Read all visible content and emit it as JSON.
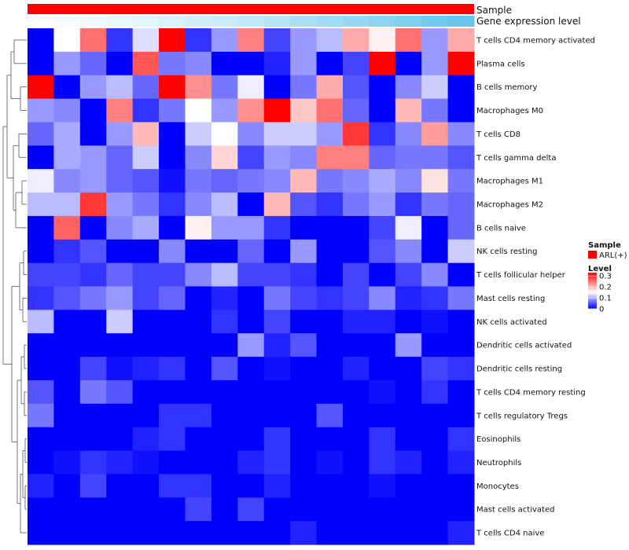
{
  "chart_data": {
    "type": "heatmap",
    "title": "",
    "column_annotations": [
      {
        "label": "Sample",
        "color": "#ff0000"
      },
      {
        "label": "Gene expression level",
        "colors": [
          "#ffffff",
          "#f9fdff",
          "#f1fbfe",
          "#e9f8fd",
          "#e1f5fc",
          "#d9f2fb",
          "#d1effa",
          "#c8ecf9",
          "#bfe9f8",
          "#b6e5f7",
          "#acdff6",
          "#a1dcf5",
          "#96d8f4",
          "#8ad4f2",
          "#7ed0f1",
          "#72cbef",
          "#66c6ee",
          "#5ac2ec"
        ]
      },
      {
        "label_note": "cyan gradient"
      }
    ],
    "rows": [
      "T cells CD4 memory activated",
      "Plasma cells",
      "B cells memory",
      "Macrophages M0",
      "T cells CD8",
      "T cells gamma delta",
      "Macrophages M1",
      "Macrophages M2",
      "B cells naive",
      "NK cells resting",
      "T cells follicular helper",
      "Mast cells resting",
      "NK cells activated",
      "Dendritic cells activated",
      "Dendritic cells resting",
      "T cells CD4 memory resting",
      "T cells regulatory  Tregs",
      "Eosinophils",
      "Neutrophils",
      "Monocytes",
      "Mast cells activated",
      "T cells CD4 naive"
    ],
    "values": [
      [
        0.0,
        0.15,
        0.25,
        0.03,
        0.13,
        0.33,
        0.03,
        0.09,
        0.24,
        0.04,
        0.09,
        0.11,
        0.21,
        0.16,
        0.25,
        0.09,
        0.21
      ],
      [
        0.0,
        0.09,
        0.06,
        0.0,
        0.27,
        0.07,
        0.08,
        0.0,
        0.0,
        0.02,
        0.09,
        0.0,
        0.04,
        0.33,
        0.0,
        0.09,
        0.33
      ],
      [
        0.33,
        0.0,
        0.09,
        0.11,
        0.06,
        0.33,
        0.23,
        0.07,
        0.14,
        0.0,
        0.07,
        0.21,
        0.05,
        0.0,
        0.08,
        0.12,
        0.0
      ],
      [
        0.09,
        0.08,
        0.0,
        0.24,
        0.03,
        0.07,
        0.15,
        0.09,
        0.23,
        0.33,
        0.19,
        0.25,
        0.06,
        0.0,
        0.2,
        0.07,
        0.0
      ],
      [
        0.06,
        0.1,
        0.0,
        0.09,
        0.2,
        0.0,
        0.12,
        0.15,
        0.08,
        0.12,
        0.12,
        0.09,
        0.29,
        0.03,
        0.08,
        0.22,
        0.08
      ],
      [
        0.0,
        0.1,
        0.09,
        0.06,
        0.12,
        0.0,
        0.08,
        0.18,
        0.04,
        0.09,
        0.08,
        0.24,
        0.24,
        0.06,
        0.07,
        0.07,
        0.05
      ],
      [
        0.14,
        0.08,
        0.09,
        0.06,
        0.05,
        0.01,
        0.07,
        0.06,
        0.07,
        0.08,
        0.2,
        0.07,
        0.08,
        0.1,
        0.08,
        0.17,
        0.07
      ],
      [
        0.11,
        0.11,
        0.29,
        0.09,
        0.07,
        0.03,
        0.08,
        0.11,
        0.0,
        0.2,
        0.05,
        0.03,
        0.07,
        0.09,
        0.03,
        0.07,
        0.06
      ],
      [
        0.0,
        0.26,
        0.0,
        0.08,
        0.1,
        0.0,
        0.16,
        0.09,
        0.09,
        0.03,
        0.0,
        0.0,
        0.0,
        0.04,
        0.14,
        0.0,
        0.06
      ],
      [
        0.0,
        0.03,
        0.05,
        0.0,
        0.0,
        0.08,
        0.0,
        0.0,
        0.06,
        0.0,
        0.09,
        0.0,
        0.0,
        0.05,
        0.08,
        0.0,
        0.12
      ],
      [
        0.04,
        0.04,
        0.03,
        0.06,
        0.04,
        0.04,
        0.08,
        0.11,
        0.04,
        0.04,
        0.03,
        0.0,
        0.04,
        0.0,
        0.04,
        0.08,
        0.0
      ],
      [
        0.03,
        0.05,
        0.07,
        0.09,
        0.04,
        0.06,
        0.0,
        0.02,
        0.0,
        0.07,
        0.04,
        0.03,
        0.04,
        0.08,
        0.02,
        0.03,
        0.07
      ],
      [
        0.11,
        0.0,
        0.0,
        0.12,
        0.0,
        0.0,
        0.0,
        0.03,
        0.0,
        0.04,
        0.0,
        0.0,
        0.02,
        0.02,
        0.0,
        0.01,
        0.0
      ],
      [
        0.0,
        0.0,
        0.0,
        0.0,
        0.0,
        0.0,
        0.0,
        0.0,
        0.09,
        0.02,
        0.05,
        0.0,
        0.0,
        0.0,
        0.09,
        0.0,
        0.0
      ],
      [
        0.0,
        0.0,
        0.04,
        0.01,
        0.02,
        0.03,
        0.0,
        0.05,
        0.0,
        0.01,
        0.0,
        0.0,
        0.02,
        0.0,
        0.0,
        0.04,
        0.03
      ],
      [
        0.05,
        0.0,
        0.07,
        0.05,
        0.0,
        0.0,
        0.0,
        0.0,
        0.0,
        0.0,
        0.0,
        0.0,
        0.0,
        0.01,
        0.0,
        0.03,
        0.0
      ],
      [
        0.07,
        0.0,
        0.0,
        0.0,
        0.0,
        0.03,
        0.03,
        0.0,
        0.0,
        0.0,
        0.0,
        0.05,
        0.0,
        0.0,
        0.0,
        0.0,
        0.0
      ],
      [
        0.0,
        0.0,
        0.0,
        0.0,
        0.02,
        0.03,
        0.0,
        0.0,
        0.0,
        0.03,
        0.0,
        0.0,
        0.0,
        0.03,
        0.0,
        0.0,
        0.03
      ],
      [
        0.0,
        0.01,
        0.03,
        0.02,
        0.01,
        0.0,
        0.0,
        0.0,
        0.02,
        0.03,
        0.0,
        0.01,
        0.0,
        0.03,
        0.02,
        0.0,
        0.02
      ],
      [
        0.02,
        0.0,
        0.04,
        0.0,
        0.0,
        0.03,
        0.03,
        0.0,
        0.0,
        0.02,
        0.0,
        0.0,
        0.0,
        0.01,
        0.0,
        0.0,
        0.0
      ],
      [
        0.0,
        0.0,
        0.0,
        0.0,
        0.0,
        0.0,
        0.04,
        0.0,
        0.04,
        0.0,
        0.0,
        0.0,
        0.0,
        0.0,
        0.0,
        0.0,
        0.0
      ],
      [
        0.0,
        0.0,
        0.0,
        0.0,
        0.0,
        0.0,
        0.0,
        0.0,
        0.0,
        0.0,
        0.02,
        0.0,
        0.0,
        0.0,
        0.0,
        0.0,
        0.02
      ]
    ],
    "color_scale": {
      "low": "#0000ff",
      "mid": "#ffffff",
      "high": "#ff0000",
      "min": 0,
      "mid_value": 0.15,
      "max": 0.33
    },
    "legend": {
      "sample_title": "Sample",
      "sample_entry": "ARL(+)",
      "sample_color": "#ff0000",
      "level_title": "Level",
      "ticks": [
        "0.3",
        "0.2",
        "0.1",
        "0"
      ],
      "tick_values": [
        0.3,
        0.2,
        0.1,
        0
      ],
      "placement": "right"
    }
  }
}
